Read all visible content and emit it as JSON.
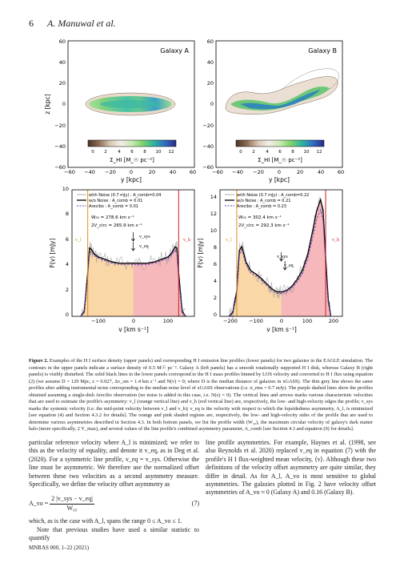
{
  "header": {
    "page_number": "6",
    "authors": "A. Manuwal et al."
  },
  "figure": {
    "top_panels": [
      {
        "title": "Galaxy A",
        "colorbar_ticks": [
          "0",
          "2",
          "4",
          "6",
          "8",
          "10",
          "12"
        ],
        "colorbar_label": "Σ_HI [M_☉ pc⁻²]",
        "xlabel": "y [kpc]",
        "ylabel": "z [kpc]",
        "xticks": [
          "−60",
          "−40",
          "−20",
          "0",
          "20",
          "40",
          "60"
        ],
        "yticks": [
          "60",
          "40",
          "20",
          "0",
          "−20",
          "−40",
          "−60"
        ]
      },
      {
        "title": "Galaxy B",
        "colorbar_ticks": [
          "0",
          "2",
          "4",
          "6",
          "8",
          "10",
          "12"
        ],
        "colorbar_label": "Σ_HI [M_☉ pc⁻²]",
        "xlabel": "y [kpc]",
        "xticks": [
          "−60",
          "−40",
          "−20",
          "0",
          "20",
          "40",
          "60"
        ],
        "yticks": [
          "60",
          "40",
          "20",
          "0",
          "−20",
          "−40",
          "−60"
        ]
      }
    ],
    "bottom_panels": [
      {
        "legend": [
          "with Noise (0.7 mJy) : A_comb=0.04",
          "w/o Noise : A_comb = 0.01",
          "Arecibo : A_comb = 0.01"
        ],
        "w50": "W₅₀ = 278.6 km s⁻¹",
        "vcirc": "2V_circ = 265.9 km s⁻¹",
        "ylabel": "F(v) [mJy]",
        "xlabel": "v [km s⁻¹]",
        "xticks": [
          "−100",
          "0",
          "100"
        ],
        "yticks": [
          "0",
          "2",
          "4",
          "6",
          "8",
          "10"
        ],
        "v_l": "v_l",
        "v_h": "v_h",
        "v_sys": "v_sys",
        "v_eq": "v_eq"
      },
      {
        "legend": [
          "with Noise (0.7 mJy) : A_comb=0.22",
          "w/o Noise : A_comb = 0.21",
          "Arecibo : A_comb = 0.23"
        ],
        "w50": "W₅₀ = 302.4 km s⁻¹",
        "vcirc": "2V_circ = 292.3 km s⁻¹",
        "ylabel": "F(v) [mJy]",
        "xlabel": "v [km s⁻¹]",
        "xticks": [
          "−200",
          "−100",
          "0",
          "100",
          "200"
        ],
        "yticks": [
          "0",
          "2",
          "4",
          "6",
          "8",
          "10",
          "12",
          "14"
        ],
        "v_l": "v_l",
        "v_h": "v_h",
        "v_sys": "v_sys",
        "v_eq": "v_eq"
      }
    ],
    "caption": {
      "label": "Figure 2.",
      "text": "Examples of the H I surface density (upper panels) and corresponding H I emission line profiles (lower panels) for two galaxies in the EAGLE simulation. The contours in the upper panels indicate a surface density of 0.5 M☉ pc⁻². Galaxy A (left panels) has a smooth rotationally supported H I disk, whereas Galaxy B (right panels) is visibly disturbed. The solid black lines in the lower panels correspond to the H I mass profiles binned by LOS velocity and converted to H I flux using equation (2) (we assume D = 129 Mpc, z = 0.027, Δv_sm = 1.4 km s⁻¹ and N(v) = 0; where D is the median distance of galaxies in xGASS). The thin grey line shows the same profiles after adding instrumental noise corresponding to the median noise level of xGASS observations (i.e. σ_rms = 0.7 mJy). The purple dashed lines show the profiles obtained assuming a single-dish Arecibo observation (no noise is added in this case, i.e. N(z) = 0). The vertical lines and arrows marks various characteristic velocities that are used to estimate the profile's asymmetry: v_l (orange vertical line) and v_h (red vertical line) are, respectively, the low- and high-velocity edges the profile; v_sys marks the systemic velocity (i.e. the mid-point velocity between v_l and v_h); v_eq is the velocity with respect to which the lopsidedness asymmetry, A_l, is minimized [see equation (4) and Section 4.3.2 for details]. The orange and pink shaded regions are, respectively, the low- and high-velocity sides of the profile that are used to determine various asymmetries described in Section 4.3. In both bottom panels, we list the profile width (W₅₀), the maximum circular velocity of galaxy's dark matter halo (more specifically, 2 V_max), and several values of the line profile's combined asymmetry parameter, A_comb [see Section 4.3 and equation (9) for details]."
    },
    "chart_data": [
      {
        "type": "line",
        "title": "",
        "xlabel": "v [km s⁻¹]",
        "ylabel": "F(v) [mJy]",
        "xlim": [
          -175,
          175
        ],
        "ylim": [
          0,
          10
        ],
        "series": [
          {
            "name": "w/o Noise : A_comb = 0.01",
            "x": [
              -150,
              -140,
              -130,
              -125,
              -120,
              -110,
              -100,
              -80,
              -60,
              -40,
              -20,
              0,
              20,
              40,
              60,
              80,
              100,
              110,
              120,
              125,
              130,
              140,
              150
            ],
            "y": [
              0,
              0.4,
              3.5,
              5.4,
              5.3,
              4.9,
              4.7,
              4.5,
              4.3,
              4.2,
              4.2,
              4.2,
              4.2,
              4.2,
              4.3,
              4.5,
              4.7,
              5.0,
              5.5,
              5.4,
              3.4,
              0.4,
              0
            ]
          },
          {
            "name": "Arecibo : A_comb = 0.01",
            "x": [
              -150,
              -140,
              -130,
              -125,
              -120,
              -110,
              -100,
              -80,
              -60,
              -40,
              -20,
              0,
              20,
              40,
              60,
              80,
              100,
              110,
              120,
              125,
              130,
              140,
              150
            ],
            "y": [
              0,
              0.3,
              3.2,
              5.0,
              5.1,
              4.8,
              4.6,
              4.4,
              4.2,
              4.1,
              4.1,
              4.1,
              4.1,
              4.1,
              4.2,
              4.4,
              4.6,
              4.9,
              5.2,
              5.0,
              3.0,
              0.3,
              0
            ]
          }
        ]
      },
      {
        "type": "line",
        "title": "",
        "xlabel": "v [km s⁻¹]",
        "ylabel": "F(v) [mJy]",
        "xlim": [
          -250,
          225
        ],
        "ylim": [
          0,
          15
        ],
        "series": [
          {
            "name": "w/o Noise : A_comb = 0.21",
            "x": [
              -215,
              -200,
              -185,
              -175,
              -165,
              -150,
              -130,
              -110,
              -90,
              -70,
              -50,
              -30,
              -10,
              10,
              30,
              50,
              70,
              90,
              110,
              125,
              140,
              150,
              160,
              170,
              180
            ],
            "y": [
              0,
              0.5,
              3.0,
              7.8,
              8.3,
              6.5,
              5.4,
              5.0,
              4.5,
              3.9,
              3.3,
              2.9,
              2.9,
              3.1,
              3.6,
              4.4,
              5.5,
              7.3,
              10.2,
              12.5,
              13.8,
              12.6,
              7.0,
              2.0,
              0
            ]
          },
          {
            "name": "Arecibo : A_comb = 0.23",
            "x": [
              -215,
              -200,
              -185,
              -175,
              -165,
              -150,
              -130,
              -110,
              -90,
              -70,
              -50,
              -30,
              -10,
              10,
              30,
              50,
              70,
              90,
              110,
              125,
              140,
              150,
              160,
              170,
              180
            ],
            "y": [
              0,
              0.4,
              2.6,
              7.2,
              7.9,
              6.2,
              5.1,
              4.8,
              4.3,
              3.7,
              3.1,
              2.7,
              2.7,
              2.9,
              3.4,
              4.1,
              5.1,
              6.8,
              9.4,
              11.5,
              12.6,
              11.4,
              6.0,
              1.6,
              0
            ]
          }
        ]
      }
    ]
  },
  "body": {
    "left_p1": "particular reference velocity where A_l is minimized; we refer to this as the velocity of equality, and denote it v_eq, as in Deg et al. (2020). For a symmetric line profile, v_eq = v_sys. Otherwise the line must be asymmetric. We therefore use the normalized offset between these two velocities as a second asymmetry measure. Specifically, we define the velocity offset asymmetry as",
    "eq_lhs": "A_vo =",
    "eq_num": "2 |v_sys − v_eq|",
    "eq_den": "W₉₅",
    "eq_tag": "(7)",
    "left_p2": "which, as is the case with A_l, spans the range 0 ≤ A_vo ≤ 1.",
    "left_p3": "Note that previous studies have used a similar statistic to quantify",
    "right_p1": "line profile asymmetries. For example, Haynes et al. (1998, see also Reynolds et al. 2020) replaced v_eq in equation (7) with the profile's H I flux-weighted mean velocity, ⟨v⟩. Although these two definitions of the velocity offset asymmetry are quite similar, they differ in detail. As for A_l, A_vo is most sensitive to global asymmetries. The galaxies plotted in Fig. 2 have velocity offset asymmetries of A_vo ≈ 0 (Galaxy A) and 0.16 (Galaxy B)."
  },
  "footer": {
    "text": "MNRAS 000, 1–22 (2021)"
  }
}
